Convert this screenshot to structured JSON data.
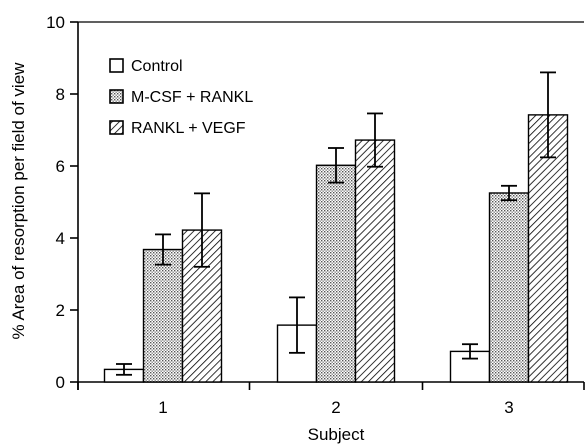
{
  "chart_data": {
    "type": "bar",
    "xlabel": "Subject",
    "ylabel": "% Area of resorption per field of view",
    "categories": [
      "1",
      "2",
      "3"
    ],
    "ylim": [
      0,
      10
    ],
    "yticks": [
      0,
      2,
      4,
      6,
      8,
      10
    ],
    "grid": false,
    "legend_position": "top-left",
    "series": [
      {
        "name": "Control",
        "pattern": "open",
        "values": [
          0.35,
          1.58,
          0.85
        ],
        "errors": [
          0.15,
          0.77,
          0.2
        ]
      },
      {
        "name": "M-CSF + RANKL",
        "pattern": "fine-dotted",
        "values": [
          3.68,
          6.02,
          5.25
        ],
        "errors": [
          0.42,
          0.48,
          0.2
        ]
      },
      {
        "name": "RANKL + VEGF",
        "pattern": "hatched",
        "values": [
          4.22,
          6.72,
          7.42
        ],
        "errors": [
          1.02,
          0.74,
          1.18
        ]
      }
    ],
    "colors": {
      "axis": "#000000",
      "bar_stroke": "#000000",
      "bar_fill": "#ffffff"
    }
  }
}
